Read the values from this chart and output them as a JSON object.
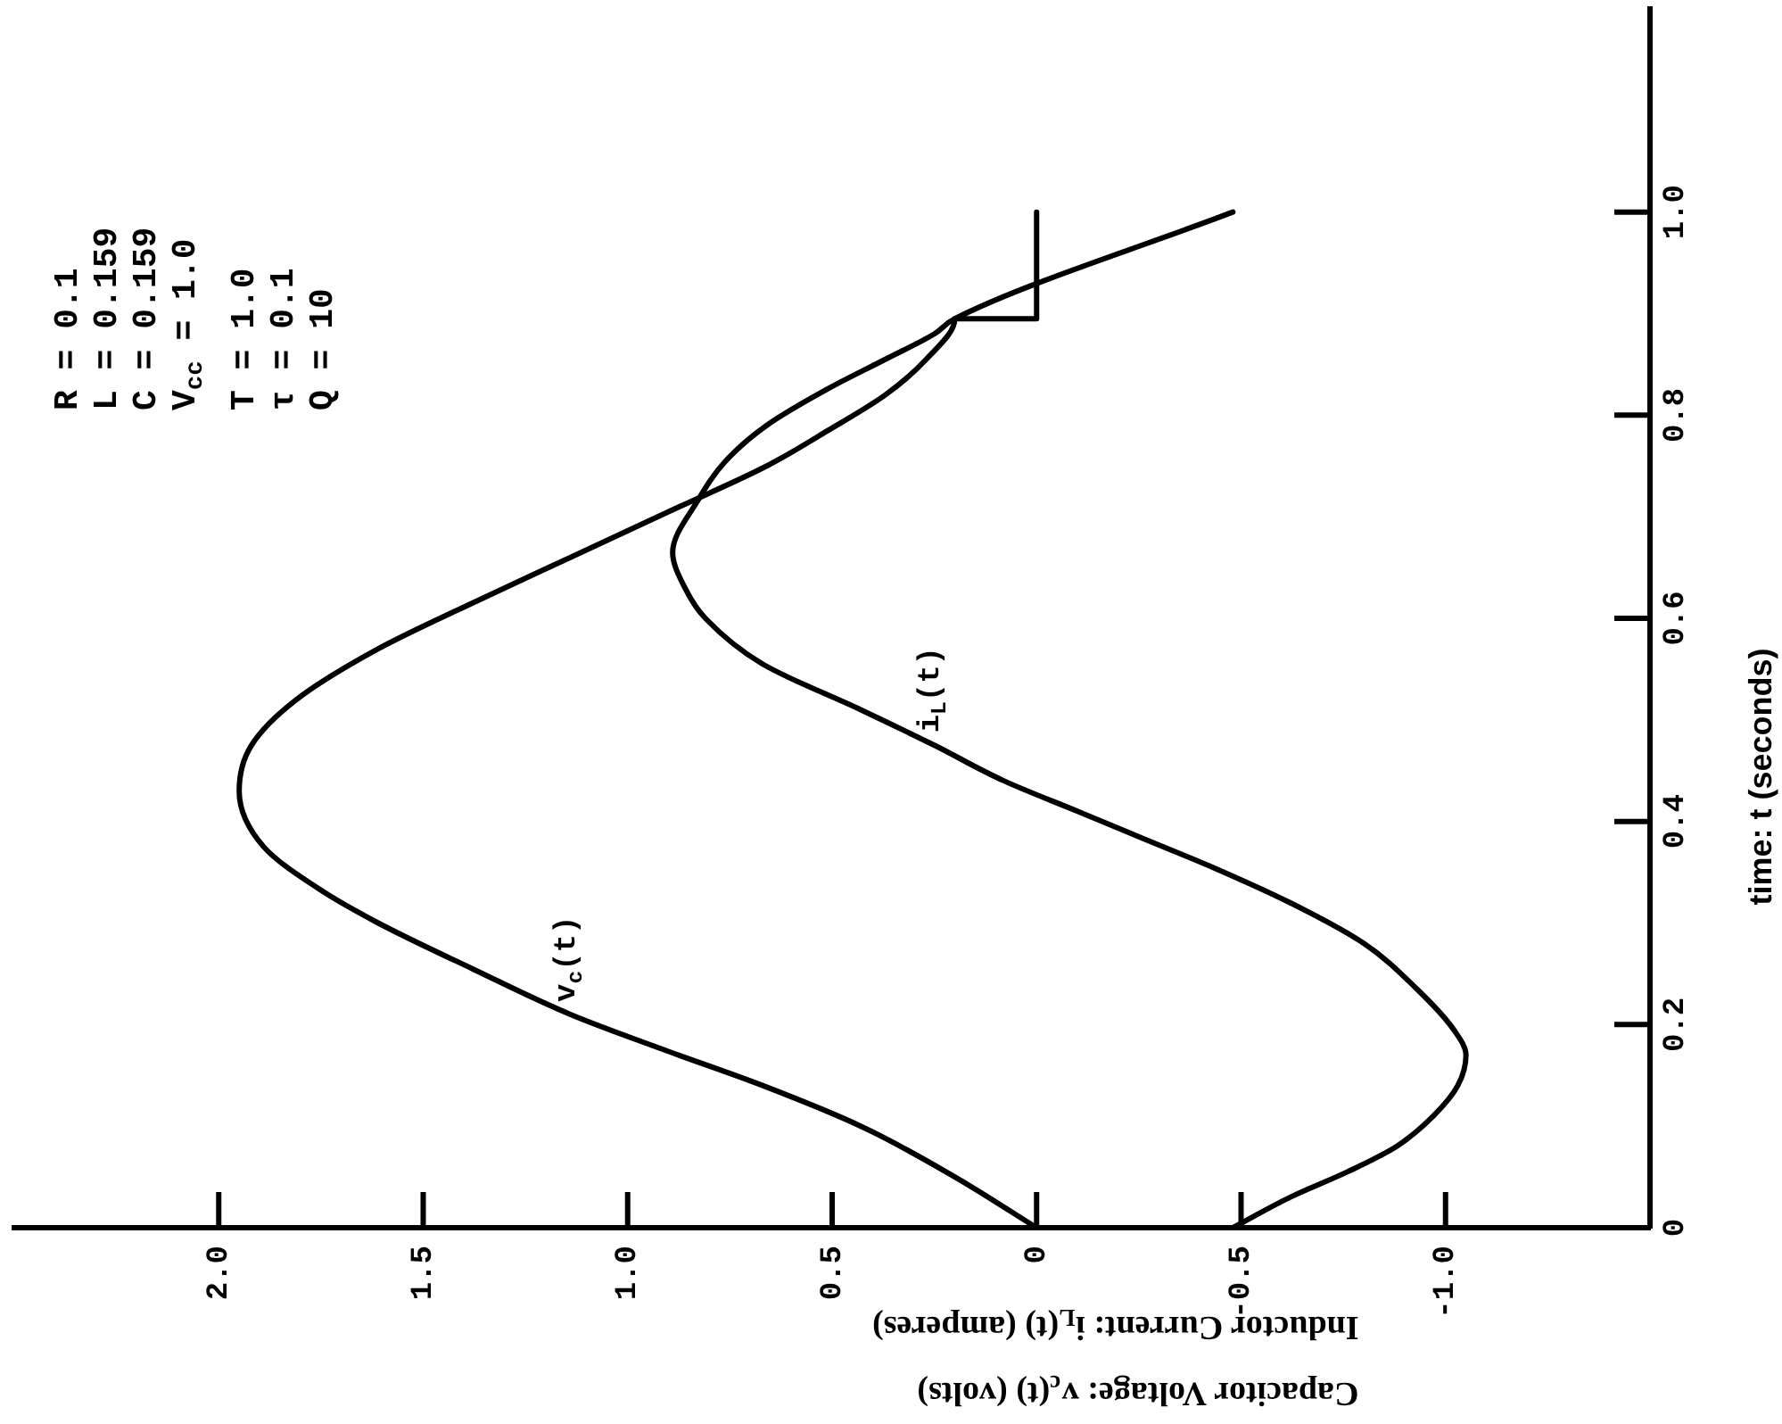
{
  "chart_data": {
    "type": "line",
    "xlabel": "Capacitor Voltage: v$_{c}$(t) (volts)\nInductor Current: i$_{L}$(t) (amperes)",
    "ylabel": "time: t (seconds)",
    "annotations": [
      "R = 0.1",
      "L = 0.159",
      "C = 0.159",
      "V$_{cc}$ = 1.0",
      "T = 1.0",
      "τ = 0.1",
      "Q = 10"
    ],
    "series": [
      {
        "name": "v$_{c}$(t)",
        "color": "#000000",
        "x": [
          0,
          0.2,
          0.43,
          0.67,
          0.91,
          1.14,
          1.38,
          1.61,
          1.76,
          1.89,
          1.95,
          1.92,
          1.81,
          1.61,
          1.38,
          1.14,
          0.9,
          0.66,
          0.51,
          0.37,
          0.27,
          0.2,
          0,
          0
        ],
        "values": [
          0,
          0.05,
          0.1,
          0.14,
          0.175,
          0.21,
          0.255,
          0.3,
          0.335,
          0.375,
          0.43,
          0.475,
          0.52,
          0.57,
          0.615,
          0.66,
          0.705,
          0.75,
          0.785,
          0.82,
          0.855,
          0.895,
          0.895,
          1
        ]
      },
      {
        "name": "i$_{L}$(t)",
        "color": "#000000",
        "x": [
          -0.48,
          -0.62,
          -0.76,
          -0.88,
          -0.97,
          -1.03,
          -1.05,
          -1.02,
          -0.93,
          -0.8,
          -0.62,
          -0.43,
          -0.28,
          -0.1,
          0.08,
          0.25,
          0.43,
          0.67,
          0.81,
          0.86,
          0.89,
          0.83,
          0.76,
          0.66,
          0.515,
          0.37,
          0.25,
          0.2,
          -0.48
        ],
        "values": [
          0,
          0.03,
          0.055,
          0.08,
          0.11,
          0.14,
          0.17,
          0.195,
          0.235,
          0.28,
          0.32,
          0.355,
          0.38,
          0.41,
          0.44,
          0.475,
          0.51,
          0.555,
          0.6,
          0.63,
          0.665,
          0.715,
          0.755,
          0.79,
          0.825,
          0.855,
          0.88,
          0.895,
          1
        ]
      }
    ],
    "xlim": [
      2.5,
      -1.5
    ],
    "xticks": [
      {
        "value": 2,
        "label": "2.0"
      },
      1.5,
      {
        "value": 1,
        "label": "1.0"
      },
      0.5,
      0,
      -0.5,
      {
        "value": -1,
        "label": "-1.0"
      }
    ],
    "ylim": [
      0,
      1.2
    ],
    "yticks": [
      0,
      0.2,
      0.4,
      0.6,
      0.8,
      {
        "value": 1,
        "label": "1.0"
      }
    ],
    "grid": false,
    "legend": false,
    "marker": "none",
    "line_style": "solid"
  }
}
